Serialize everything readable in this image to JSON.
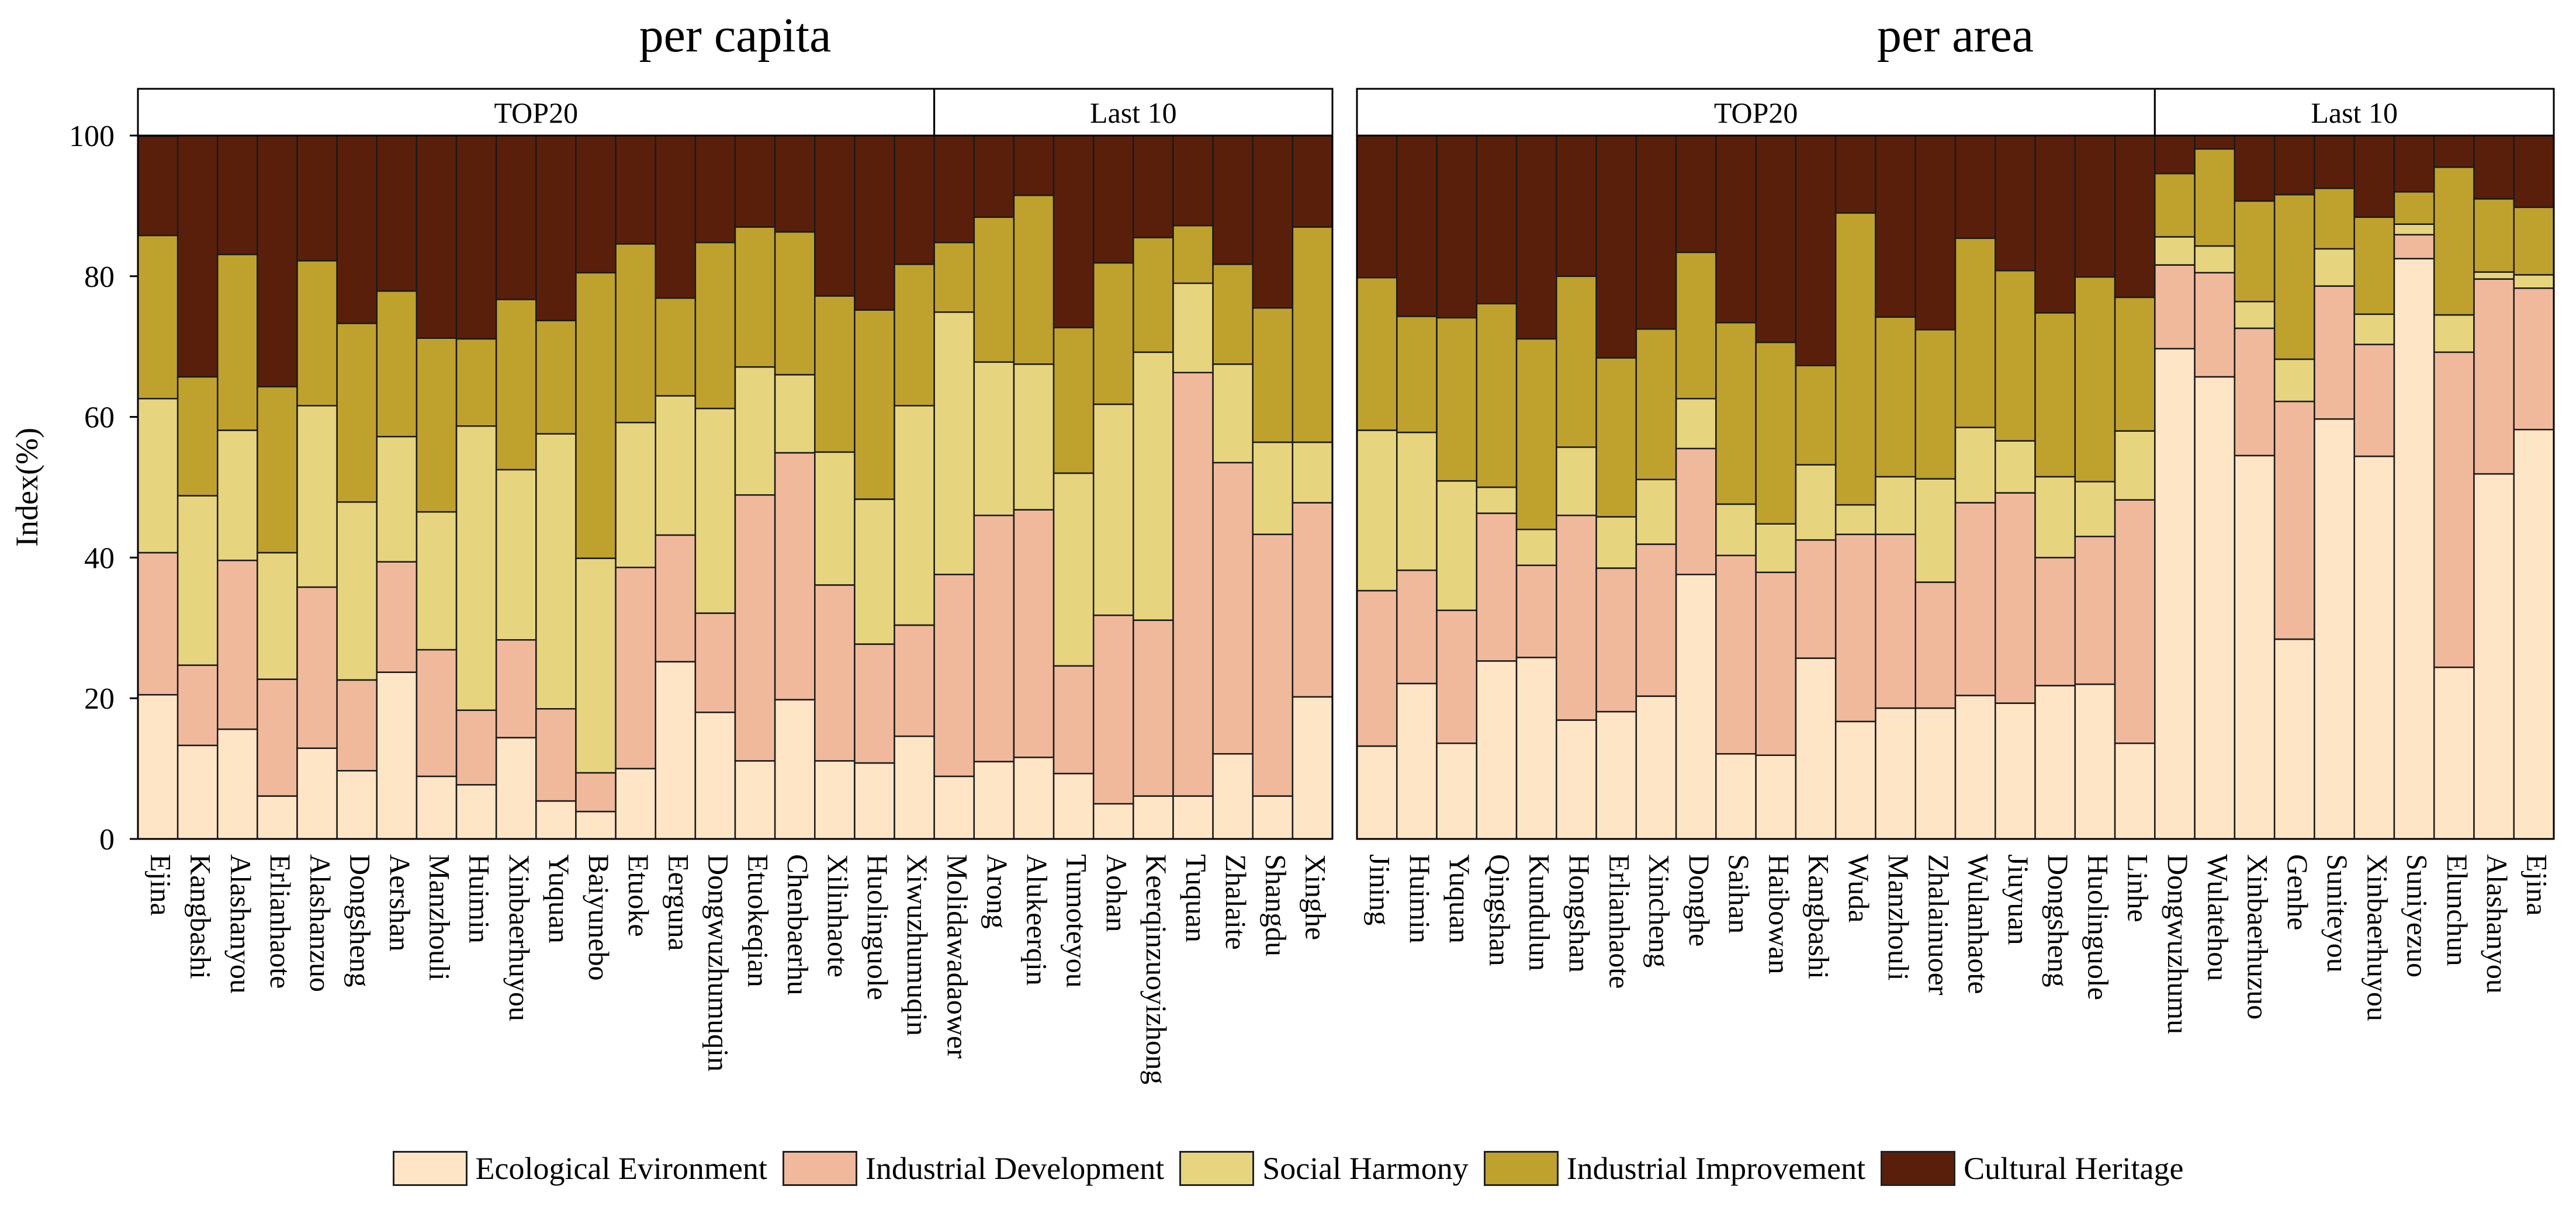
{
  "chart_data": {
    "type": "bar",
    "stacked": true,
    "ylabel": "Index(%)",
    "ylim": [
      0,
      100
    ],
    "yticks": [
      "0",
      "20",
      "40",
      "60",
      "80",
      "100"
    ],
    "legend_position": "bottom",
    "series": [
      {
        "name": "Ecological Evironment",
        "color": "#FDE5C6"
      },
      {
        "name": "Industrial Development",
        "color": "#F0B99C"
      },
      {
        "name": "Social Harmony",
        "color": "#E6D57E"
      },
      {
        "name": "Industrial Improvement",
        "color": "#BFA22E"
      },
      {
        "name": "Cultural Heritage",
        "color": "#5A1F0B"
      }
    ],
    "panels": [
      {
        "title": "per capita",
        "groups": [
          {
            "label": "TOP20",
            "count": 20
          },
          {
            "label": "Last 10",
            "count": 10
          }
        ],
        "categories": [
          "Ejina",
          "Kangbashi",
          "Alashanyou",
          "Erlianhaote",
          "Alashanzuo",
          "Dongsheng",
          "Aershan",
          "Manzhouli",
          "Huimin",
          "Xinbaerhuyou",
          "Yuquan",
          "Baiyunebo",
          "Etuoke",
          "Eerguna",
          "Dongwuzhumuqin",
          "Etuokeqian",
          "Chenbaerhu",
          "Xilinhaote",
          "Huolinguole",
          "Xiwuzhumuqin",
          "Molidawadaower",
          "Arong",
          "Alukeerqin",
          "Tumoteyou",
          "Aohan",
          "Keerqinzuoyizhong",
          "Tuquan",
          "Zhalaite",
          "Shangdu",
          "Xinghe"
        ],
        "values": [
          [
            20.5,
            20.2,
            21.9,
            23.2,
            14.1
          ],
          [
            13.3,
            11.4,
            24.1,
            16.9,
            34.3
          ],
          [
            15.6,
            24.0,
            18.5,
            25.0,
            16.9
          ],
          [
            6.1,
            16.6,
            18.0,
            23.6,
            35.7
          ],
          [
            12.9,
            22.9,
            25.8,
            20.6,
            17.8
          ],
          [
            9.7,
            12.9,
            25.3,
            25.4,
            26.7
          ],
          [
            23.7,
            15.7,
            17.8,
            20.7,
            22.1
          ],
          [
            8.9,
            18.0,
            19.6,
            24.7,
            28.8
          ],
          [
            7.7,
            10.6,
            40.4,
            12.4,
            28.9
          ],
          [
            14.4,
            13.9,
            24.2,
            24.2,
            23.3
          ],
          [
            5.4,
            13.1,
            39.1,
            16.1,
            26.3
          ],
          [
            3.9,
            5.5,
            30.5,
            40.6,
            19.5
          ],
          [
            10.0,
            28.6,
            20.6,
            25.4,
            15.4
          ],
          [
            25.2,
            18.0,
            19.8,
            13.9,
            23.1
          ],
          [
            18.0,
            14.1,
            29.1,
            23.6,
            15.2
          ],
          [
            11.1,
            37.8,
            18.2,
            19.9,
            13.0
          ],
          [
            19.8,
            35.1,
            11.1,
            20.3,
            13.7
          ],
          [
            11.1,
            25.0,
            18.9,
            22.2,
            22.8
          ],
          [
            10.8,
            16.9,
            20.6,
            26.9,
            24.8
          ],
          [
            14.6,
            15.8,
            31.2,
            20.1,
            18.3
          ],
          [
            8.9,
            28.7,
            37.3,
            9.9,
            15.2
          ],
          [
            11.0,
            35.0,
            21.8,
            20.6,
            11.6
          ],
          [
            11.6,
            35.2,
            20.7,
            24.0,
            8.5
          ],
          [
            9.3,
            15.3,
            27.4,
            20.7,
            27.3
          ],
          [
            5.0,
            26.8,
            30.0,
            20.1,
            18.1
          ],
          [
            6.1,
            25.0,
            38.1,
            16.3,
            14.5
          ],
          [
            6.1,
            60.2,
            12.7,
            8.2,
            12.8
          ],
          [
            12.1,
            41.4,
            14.0,
            14.2,
            18.3
          ],
          [
            6.1,
            37.2,
            13.1,
            19.1,
            24.5
          ],
          [
            20.2,
            27.6,
            8.6,
            30.6,
            13.0
          ]
        ]
      },
      {
        "title": "per area",
        "groups": [
          {
            "label": "TOP20",
            "count": 20
          },
          {
            "label": "Last 10",
            "count": 10
          }
        ],
        "categories": [
          "Jining",
          "Huimin",
          "Yuquan",
          "Qingshan",
          "Kundulun",
          "Hongshan",
          "Erlianhaote",
          "Xincheng",
          "Donghe",
          "Saihan",
          "Haibowan",
          "Kangbashi",
          "Wuda",
          "Manzhouli",
          "Zhalainuoer",
          "Wulanhaote",
          "Jiuyuan",
          "Dongsheng",
          "Huolinguole",
          "Linhe",
          "Dongwuzhumu",
          "Wulatehou",
          "Xinbaerhuzuo",
          "Genhe",
          "Suniteyou",
          "Xinbaerhuyou",
          "Suniyezuo",
          "Elunchun",
          "Alashanyou",
          "Ejina"
        ],
        "values": [
          [
            13.2,
            22.1,
            22.8,
            21.7,
            20.2
          ],
          [
            22.1,
            16.1,
            19.6,
            16.5,
            25.7
          ],
          [
            13.6,
            18.9,
            18.4,
            23.2,
            25.9
          ],
          [
            25.3,
            21.0,
            3.7,
            26.1,
            23.9
          ],
          [
            25.8,
            13.1,
            5.1,
            27.1,
            28.9
          ],
          [
            16.9,
            29.1,
            9.7,
            24.3,
            20.0
          ],
          [
            18.1,
            20.4,
            7.3,
            22.6,
            31.6
          ],
          [
            20.3,
            21.6,
            9.2,
            21.4,
            27.5
          ],
          [
            37.6,
            17.9,
            7.1,
            20.8,
            16.6
          ],
          [
            12.1,
            28.2,
            7.3,
            25.8,
            26.6
          ],
          [
            11.9,
            26.0,
            6.9,
            25.8,
            29.4
          ],
          [
            25.7,
            16.8,
            10.7,
            14.1,
            32.7
          ],
          [
            16.7,
            26.6,
            4.2,
            41.5,
            11.0
          ],
          [
            18.6,
            24.7,
            8.2,
            22.7,
            25.8
          ],
          [
            18.6,
            17.9,
            14.7,
            21.2,
            27.6
          ],
          [
            20.4,
            27.4,
            10.7,
            26.9,
            14.6
          ],
          [
            19.3,
            29.9,
            7.4,
            24.2,
            19.2
          ],
          [
            21.8,
            18.2,
            11.5,
            23.3,
            25.2
          ],
          [
            22.0,
            21.0,
            7.8,
            29.1,
            20.1
          ],
          [
            13.6,
            34.6,
            9.8,
            19.0,
            23.0
          ],
          [
            69.7,
            11.9,
            4.0,
            9.0,
            5.4
          ],
          [
            65.7,
            14.8,
            3.8,
            13.8,
            1.9
          ],
          [
            54.5,
            18.1,
            3.8,
            14.3,
            9.3
          ],
          [
            28.4,
            33.8,
            6.0,
            23.4,
            8.4
          ],
          [
            59.7,
            18.9,
            5.3,
            8.6,
            7.5
          ],
          [
            54.4,
            15.9,
            4.3,
            13.8,
            11.6
          ],
          [
            82.5,
            3.4,
            1.5,
            4.6,
            8.0
          ],
          [
            24.4,
            44.8,
            5.3,
            21.0,
            4.5
          ],
          [
            51.9,
            27.7,
            1.0,
            10.4,
            9.0
          ],
          [
            58.2,
            20.1,
            1.9,
            9.6,
            10.2
          ]
        ]
      }
    ]
  }
}
